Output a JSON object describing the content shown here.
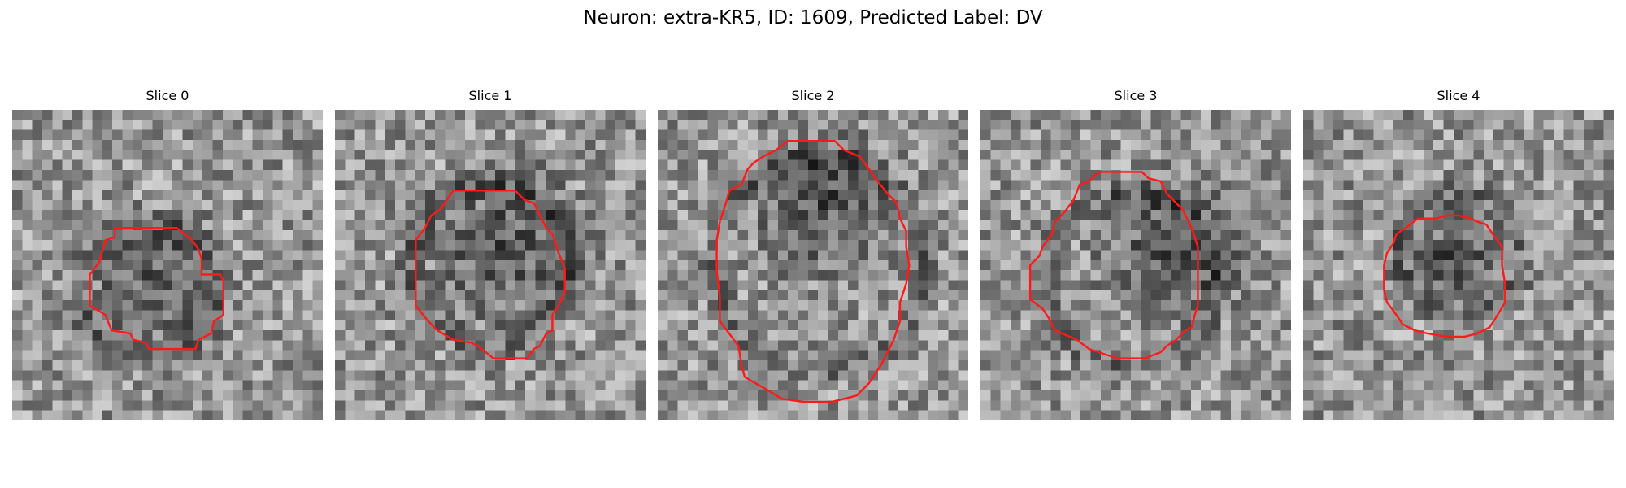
{
  "figure": {
    "title": "Neuron: extra-KR5, ID: 1609, Predicted Label: DV",
    "panels": [
      {
        "title": "Slice 0",
        "seed": 11,
        "blob": [
          0.47,
          0.57,
          0.3
        ],
        "ring": [
          0.43,
          0.58,
          0.22
        ],
        "contour": [
          [
            0.33,
            0.38
          ],
          [
            0.53,
            0.38
          ],
          [
            0.58,
            0.42
          ],
          [
            0.6,
            0.45
          ],
          [
            0.61,
            0.48
          ],
          [
            0.61,
            0.53
          ],
          [
            0.67,
            0.53
          ],
          [
            0.68,
            0.55
          ],
          [
            0.68,
            0.66
          ],
          [
            0.65,
            0.68
          ],
          [
            0.64,
            0.72
          ],
          [
            0.6,
            0.74
          ],
          [
            0.59,
            0.77
          ],
          [
            0.44,
            0.77
          ],
          [
            0.43,
            0.75
          ],
          [
            0.39,
            0.74
          ],
          [
            0.38,
            0.72
          ],
          [
            0.32,
            0.71
          ],
          [
            0.3,
            0.66
          ],
          [
            0.25,
            0.63
          ],
          [
            0.25,
            0.53
          ],
          [
            0.28,
            0.49
          ],
          [
            0.3,
            0.42
          ],
          [
            0.33,
            0.41
          ]
        ]
      },
      {
        "title": "Slice 1",
        "seed": 23,
        "blob": [
          0.55,
          0.45,
          0.34
        ],
        "ring": [
          0.5,
          0.5,
          0.26
        ],
        "contour": [
          [
            0.38,
            0.26
          ],
          [
            0.58,
            0.26
          ],
          [
            0.61,
            0.29
          ],
          [
            0.64,
            0.3
          ],
          [
            0.66,
            0.34
          ],
          [
            0.68,
            0.38
          ],
          [
            0.7,
            0.4
          ],
          [
            0.72,
            0.46
          ],
          [
            0.74,
            0.51
          ],
          [
            0.74,
            0.59
          ],
          [
            0.72,
            0.63
          ],
          [
            0.7,
            0.66
          ],
          [
            0.7,
            0.71
          ],
          [
            0.68,
            0.72
          ],
          [
            0.66,
            0.76
          ],
          [
            0.64,
            0.77
          ],
          [
            0.62,
            0.8
          ],
          [
            0.51,
            0.8
          ],
          [
            0.46,
            0.76
          ],
          [
            0.44,
            0.75
          ],
          [
            0.38,
            0.74
          ],
          [
            0.33,
            0.71
          ],
          [
            0.3,
            0.68
          ],
          [
            0.26,
            0.63
          ],
          [
            0.26,
            0.42
          ],
          [
            0.29,
            0.38
          ],
          [
            0.31,
            0.34
          ],
          [
            0.34,
            0.32
          ],
          [
            0.36,
            0.29
          ]
        ]
      },
      {
        "title": "Slice 2",
        "seed": 37,
        "blob": [
          0.55,
          0.3,
          0.32
        ],
        "ring": [
          0.52,
          0.5,
          0.34
        ],
        "contour": [
          [
            0.42,
            0.1
          ],
          [
            0.57,
            0.1
          ],
          [
            0.6,
            0.13
          ],
          [
            0.65,
            0.15
          ],
          [
            0.68,
            0.19
          ],
          [
            0.7,
            0.22
          ],
          [
            0.74,
            0.27
          ],
          [
            0.77,
            0.3
          ],
          [
            0.78,
            0.35
          ],
          [
            0.8,
            0.39
          ],
          [
            0.8,
            0.44
          ],
          [
            0.81,
            0.5
          ],
          [
            0.8,
            0.56
          ],
          [
            0.78,
            0.62
          ],
          [
            0.78,
            0.68
          ],
          [
            0.76,
            0.74
          ],
          [
            0.74,
            0.78
          ],
          [
            0.72,
            0.82
          ],
          [
            0.7,
            0.85
          ],
          [
            0.68,
            0.88
          ],
          [
            0.64,
            0.92
          ],
          [
            0.6,
            0.93
          ],
          [
            0.56,
            0.94
          ],
          [
            0.47,
            0.94
          ],
          [
            0.4,
            0.93
          ],
          [
            0.35,
            0.9
          ],
          [
            0.28,
            0.86
          ],
          [
            0.27,
            0.82
          ],
          [
            0.26,
            0.76
          ],
          [
            0.23,
            0.72
          ],
          [
            0.2,
            0.68
          ],
          [
            0.2,
            0.6
          ],
          [
            0.19,
            0.52
          ],
          [
            0.19,
            0.42
          ],
          [
            0.2,
            0.36
          ],
          [
            0.22,
            0.3
          ],
          [
            0.23,
            0.26
          ],
          [
            0.27,
            0.24
          ],
          [
            0.29,
            0.19
          ],
          [
            0.31,
            0.17
          ],
          [
            0.34,
            0.15
          ],
          [
            0.38,
            0.13
          ]
        ]
      },
      {
        "title": "Slice 3",
        "seed": 53,
        "blob": [
          0.62,
          0.45,
          0.32
        ],
        "ring": [
          0.48,
          0.55,
          0.28
        ],
        "contour": [
          [
            0.3,
            0.29
          ],
          [
            0.32,
            0.24
          ],
          [
            0.35,
            0.23
          ],
          [
            0.38,
            0.2
          ],
          [
            0.52,
            0.2
          ],
          [
            0.54,
            0.22
          ],
          [
            0.58,
            0.23
          ],
          [
            0.6,
            0.27
          ],
          [
            0.65,
            0.32
          ],
          [
            0.68,
            0.38
          ],
          [
            0.7,
            0.44
          ],
          [
            0.7,
            0.58
          ],
          [
            0.7,
            0.63
          ],
          [
            0.69,
            0.66
          ],
          [
            0.68,
            0.7
          ],
          [
            0.66,
            0.71
          ],
          [
            0.63,
            0.74
          ],
          [
            0.6,
            0.76
          ],
          [
            0.58,
            0.78
          ],
          [
            0.53,
            0.8
          ],
          [
            0.44,
            0.8
          ],
          [
            0.35,
            0.77
          ],
          [
            0.31,
            0.74
          ],
          [
            0.24,
            0.71
          ],
          [
            0.22,
            0.67
          ],
          [
            0.2,
            0.64
          ],
          [
            0.16,
            0.61
          ],
          [
            0.16,
            0.5
          ],
          [
            0.19,
            0.47
          ],
          [
            0.2,
            0.44
          ],
          [
            0.23,
            0.4
          ],
          [
            0.24,
            0.36
          ],
          [
            0.27,
            0.33
          ]
        ]
      },
      {
        "title": "Slice 4",
        "seed": 71,
        "blob": [
          0.48,
          0.48,
          0.22
        ],
        "ring": [
          0.5,
          0.47,
          0.2
        ],
        "contour": [
          [
            0.33,
            0.38
          ],
          [
            0.37,
            0.35
          ],
          [
            0.43,
            0.35
          ],
          [
            0.46,
            0.34
          ],
          [
            0.5,
            0.34
          ],
          [
            0.54,
            0.35
          ],
          [
            0.56,
            0.36
          ],
          [
            0.59,
            0.37
          ],
          [
            0.61,
            0.4
          ],
          [
            0.64,
            0.44
          ],
          [
            0.64,
            0.5
          ],
          [
            0.65,
            0.56
          ],
          [
            0.65,
            0.62
          ],
          [
            0.62,
            0.67
          ],
          [
            0.6,
            0.7
          ],
          [
            0.56,
            0.72
          ],
          [
            0.52,
            0.73
          ],
          [
            0.46,
            0.73
          ],
          [
            0.4,
            0.72
          ],
          [
            0.36,
            0.71
          ],
          [
            0.32,
            0.69
          ],
          [
            0.3,
            0.66
          ],
          [
            0.27,
            0.62
          ],
          [
            0.26,
            0.58
          ],
          [
            0.26,
            0.5
          ],
          [
            0.27,
            0.46
          ],
          [
            0.29,
            0.43
          ],
          [
            0.3,
            0.4
          ]
        ]
      }
    ],
    "colors": {
      "contour": "#ff1a1a",
      "background": "#ffffff"
    }
  }
}
